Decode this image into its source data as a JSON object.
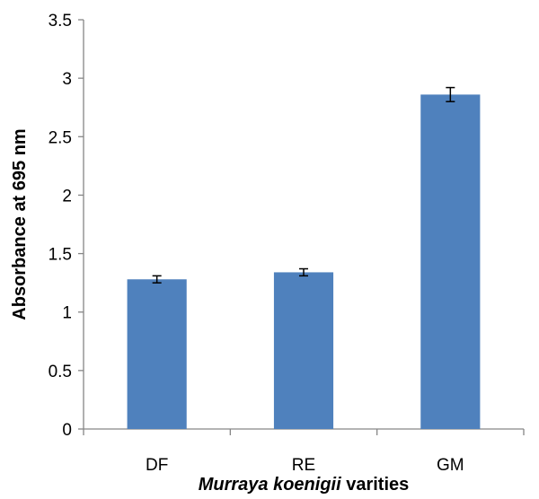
{
  "chart_data": {
    "type": "bar",
    "categories": [
      "DF",
      "RE",
      "GM"
    ],
    "values": [
      1.28,
      1.34,
      2.86
    ],
    "errors": [
      0.03,
      0.03,
      0.06
    ],
    "ylabel": "Absorbance at 695 nm",
    "xlabel_italic": "Murraya koenigii",
    "xlabel_rest": " varities",
    "ylim": [
      0,
      3.5
    ],
    "yticks": [
      "0",
      "0.5",
      "1",
      "1.5",
      "2",
      "2.5",
      "3",
      "3.5"
    ],
    "ytick_values": [
      0,
      0.5,
      1,
      1.5,
      2,
      2.5,
      3,
      3.5
    ],
    "grid": false,
    "legend": "none",
    "bar_color": "#4f81bd",
    "error_color": "#000000"
  }
}
